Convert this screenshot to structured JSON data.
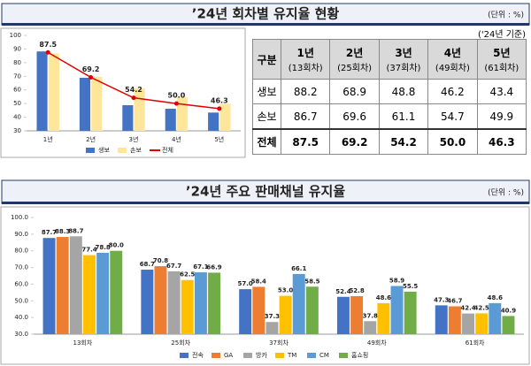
{
  "sections": [
    {
      "title": "’24년 회차별 유지율 현황",
      "unit": "(단위 : %)"
    },
    {
      "title": "’24년 주요 판매채널 유지율",
      "unit": "(단위 : %)"
    }
  ],
  "table": {
    "note": "('24년 기준)",
    "columns": [
      {
        "label": "구분"
      },
      {
        "label": "1년",
        "sub": "(13회차)"
      },
      {
        "label": "2년",
        "sub": "(25회차)"
      },
      {
        "label": "3년",
        "sub": "(37회차)"
      },
      {
        "label": "4년",
        "sub": "(49회차)"
      },
      {
        "label": "5년",
        "sub": "(61회차)"
      }
    ],
    "rows": [
      [
        "생보",
        "88.2",
        "68.9",
        "48.8",
        "46.2",
        "43.4"
      ],
      [
        "손보",
        "86.7",
        "69.6",
        "61.1",
        "54.7",
        "49.9"
      ],
      [
        "전체",
        "87.5",
        "69.2",
        "54.2",
        "50.0",
        "46.3"
      ]
    ]
  },
  "chart_data": [
    {
      "type": "bar",
      "categories": [
        "1년",
        "2년",
        "3년",
        "4년",
        "5년"
      ],
      "ylim": [
        30,
        100
      ],
      "yticks": [
        30,
        40,
        50,
        60,
        70,
        80,
        90,
        100
      ],
      "grid": false,
      "series": [
        {
          "name": "생보",
          "color": "#4472c4",
          "values": [
            88.2,
            68.9,
            48.8,
            46.2,
            43.4
          ]
        },
        {
          "name": "손보",
          "color": "#ffe699",
          "values": [
            86.7,
            69.6,
            61.1,
            54.7,
            49.9
          ]
        },
        {
          "name": "전체",
          "color": "#e00000",
          "type": "line",
          "values": [
            87.5,
            69.2,
            54.2,
            50.0,
            46.3
          ],
          "value_labels": [
            "87.5",
            "69.2",
            "54.2",
            "50.0",
            "46.3"
          ]
        }
      ]
    },
    {
      "type": "bar",
      "categories": [
        "13회차",
        "25회차",
        "37회차",
        "49회차",
        "61회차"
      ],
      "ylim": [
        30,
        100
      ],
      "yticks": [
        {
          "value": 30,
          "label": "30.0"
        },
        {
          "value": 40,
          "label": "40.0"
        },
        {
          "value": 50,
          "label": "50.0"
        },
        {
          "value": 60,
          "label": "60.0"
        },
        {
          "value": 70,
          "label": "70.0"
        },
        {
          "value": 80,
          "label": "80.0"
        },
        {
          "value": 90,
          "label": "90.0"
        },
        {
          "value": 100,
          "label": "100.0"
        }
      ],
      "grid": false,
      "series": [
        {
          "name": "전속",
          "color": "#4472c4",
          "values": [
            87.7,
            68.7,
            57.0,
            52.4,
            47.3
          ],
          "value_labels": [
            "87.7",
            "68.7",
            "57.0",
            "52.4",
            "47.3"
          ]
        },
        {
          "name": "GA",
          "color": "#ed7d31",
          "values": [
            88.3,
            70.8,
            58.4,
            52.8,
            46.7
          ],
          "value_labels": [
            "88.3",
            "70.8",
            "58.4",
            "52.8",
            "46.7"
          ]
        },
        {
          "name": "방카",
          "color": "#a5a5a5",
          "values": [
            88.7,
            67.7,
            37.3,
            37.8,
            42.4
          ],
          "value_labels": [
            "88.7",
            "67.7",
            "37.3",
            "37.8",
            "42.4"
          ]
        },
        {
          "name": "TM",
          "color": "#ffc000",
          "values": [
            77.4,
            62.5,
            53.0,
            48.6,
            42.5
          ],
          "value_labels": [
            "77.4",
            "62.5",
            "53.0",
            "48.6",
            "42.5"
          ]
        },
        {
          "name": "CM",
          "color": "#5b9bd5",
          "values": [
            78.8,
            67.1,
            66.1,
            58.9,
            48.6
          ],
          "value_labels": [
            "78.8",
            "67.1",
            "66.1",
            "58.9",
            "48.6"
          ]
        },
        {
          "name": "홈쇼핑",
          "color": "#70ad47",
          "values": [
            80.0,
            66.9,
            58.5,
            55.5,
            40.9
          ],
          "value_labels": [
            "80.0",
            "66.9",
            "58.5",
            "55.5",
            "40.9"
          ]
        }
      ]
    }
  ]
}
